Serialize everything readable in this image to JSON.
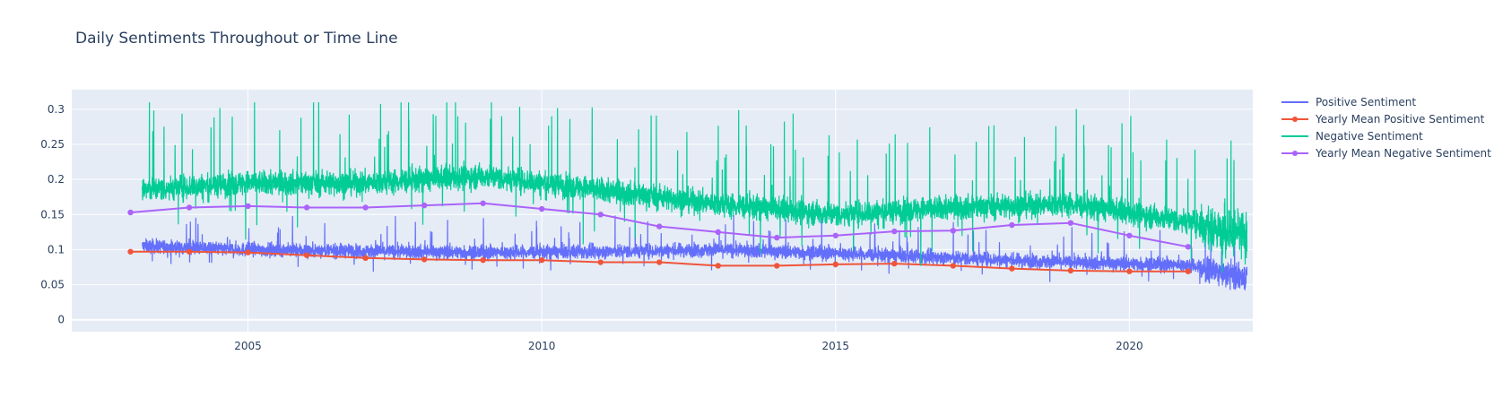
{
  "chart_data": {
    "type": "line",
    "title": "Daily Sentiments Throughout or Time Line",
    "xlabel": "",
    "ylabel": "",
    "xlim": [
      2002.0,
      2022.1
    ],
    "ylim": [
      -0.017,
      0.328
    ],
    "grid": true,
    "legend_position": "right",
    "x_ticks": [
      2005,
      2010,
      2015,
      2020
    ],
    "x_tick_labels": [
      "2005",
      "2010",
      "2015",
      "2020"
    ],
    "y_ticks": [
      0,
      0.05,
      0.1,
      0.15,
      0.2,
      0.25,
      0.3
    ],
    "y_tick_labels": [
      "0",
      "0.05",
      "0.1",
      "0.15",
      "0.2",
      "0.25",
      "0.3"
    ],
    "series": [
      {
        "name": "Positive Sentiment",
        "mode": "lines",
        "color": "#636efa",
        "x_range": [
          2003.2,
          2022.0
        ],
        "daily_points": 6800,
        "approx_yearly_center": [
          [
            2003.2,
            0.105
          ],
          [
            2005,
            0.1
          ],
          [
            2007,
            0.098
          ],
          [
            2009,
            0.096
          ],
          [
            2011,
            0.097
          ],
          [
            2013,
            0.1
          ],
          [
            2015,
            0.095
          ],
          [
            2017,
            0.088
          ],
          [
            2019,
            0.082
          ],
          [
            2021,
            0.078
          ],
          [
            2022.0,
            0.06
          ]
        ],
        "approx_range": [
          0.0,
          0.18
        ]
      },
      {
        "name": "Yearly Mean Positive Sentiment",
        "mode": "lines+markers",
        "color": "#ef553b",
        "x": [
          2003,
          2004,
          2005,
          2006,
          2007,
          2008,
          2009,
          2010,
          2011,
          2012,
          2013,
          2014,
          2015,
          2016,
          2017,
          2018,
          2019,
          2020,
          2021
        ],
        "y": [
          0.097,
          0.097,
          0.096,
          0.092,
          0.088,
          0.086,
          0.085,
          0.085,
          0.082,
          0.082,
          0.077,
          0.077,
          0.079,
          0.08,
          0.077,
          0.073,
          0.07,
          0.069,
          0.069
        ]
      },
      {
        "name": "Negative Sentiment",
        "mode": "lines",
        "color": "#00cc96",
        "x_range": [
          2003.2,
          2022.0
        ],
        "daily_points": 6800,
        "approx_yearly_center": [
          [
            2003.2,
            0.185
          ],
          [
            2005,
            0.195
          ],
          [
            2007,
            0.195
          ],
          [
            2009,
            0.205
          ],
          [
            2011,
            0.185
          ],
          [
            2013,
            0.165
          ],
          [
            2015,
            0.15
          ],
          [
            2017,
            0.16
          ],
          [
            2019,
            0.165
          ],
          [
            2021,
            0.14
          ],
          [
            2022.0,
            0.12
          ]
        ],
        "approx_range": [
          0.0,
          0.31
        ]
      },
      {
        "name": "Yearly Mean Negative Sentiment",
        "mode": "lines+markers",
        "color": "#ab63fa",
        "x": [
          2003,
          2004,
          2005,
          2006,
          2007,
          2008,
          2009,
          2010,
          2011,
          2012,
          2013,
          2014,
          2015,
          2016,
          2017,
          2018,
          2019,
          2020,
          2021
        ],
        "y": [
          0.153,
          0.16,
          0.162,
          0.16,
          0.16,
          0.163,
          0.166,
          0.158,
          0.15,
          0.133,
          0.125,
          0.117,
          0.12,
          0.126,
          0.127,
          0.135,
          0.138,
          0.12,
          0.104
        ]
      }
    ]
  }
}
